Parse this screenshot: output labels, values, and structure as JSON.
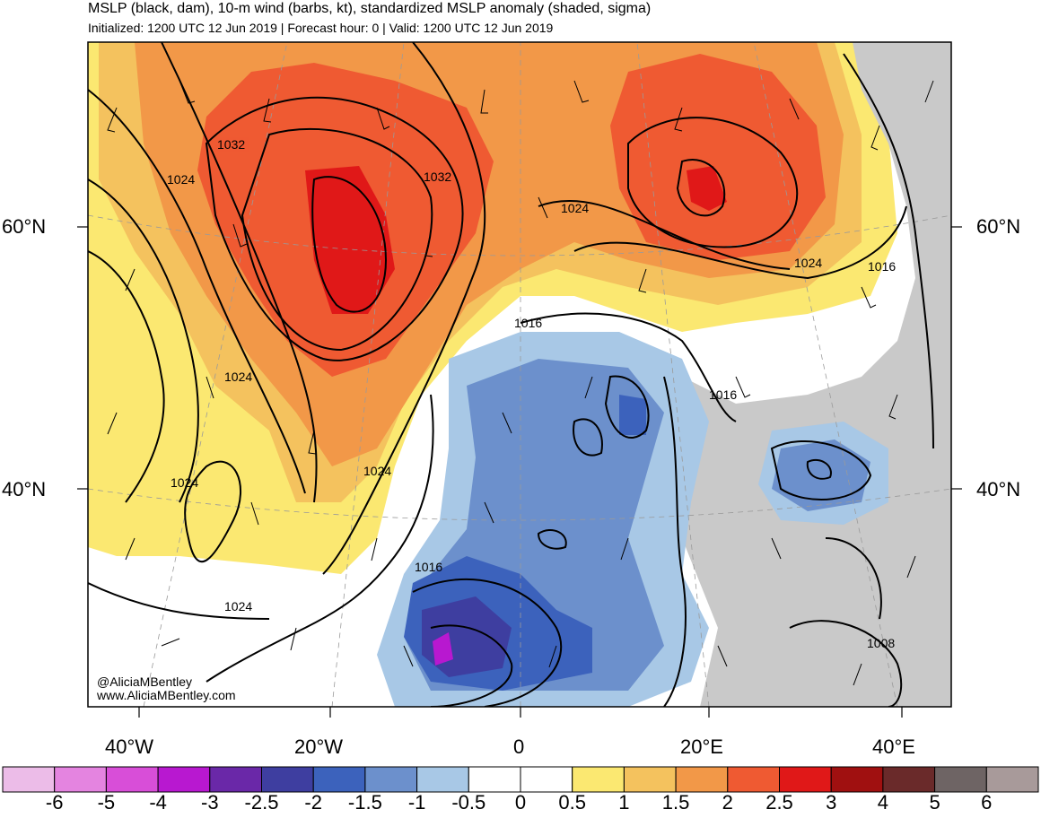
{
  "title": "MSLP (black, dam), 10-m wind (barbs, kt), standardized MSLP anomaly (shaded, sigma)",
  "subtitle": "Initialized: 1200 UTC 12 Jun 2019 | Forecast hour: 0 | Valid: 1200 UTC 12 Jun 2019",
  "lat_labels": {
    "left_60": "60°N",
    "right_60": "60°N",
    "left_40": "40°N",
    "right_40": "40°N"
  },
  "lon_labels": [
    "40°W",
    "20°W",
    "0",
    "20°E",
    "40°E"
  ],
  "isobar_labels": [
    "1032",
    "1024",
    "1032",
    "1024",
    "1024",
    "1016",
    "1024",
    "1016",
    "1024",
    "1024",
    "1016",
    "1024",
    "1016",
    "1008"
  ],
  "credits": {
    "handle": "@AliciaMBentley",
    "website": "www.AliciaMBentley.com"
  },
  "colorbar": {
    "labels": [
      "-6",
      "-5",
      "-4",
      "-3",
      "-2.5",
      "-2",
      "-1.5",
      "-1",
      "-0.5",
      "0",
      "0.5",
      "1",
      "1.5",
      "2",
      "2.5",
      "3",
      "4",
      "5",
      "6"
    ],
    "colors": [
      "#ecbce8",
      "#e484e0",
      "#d84ed8",
      "#b818d0",
      "#6a28a8",
      "#3e3ea0",
      "#3c62bc",
      "#6c90cc",
      "#a8c8e6",
      "#ffffff",
      "#ffffff",
      "#fbe871",
      "#f4c25e",
      "#f29848",
      "#ef5a32",
      "#e01818",
      "#a01010",
      "#6a2a2a",
      "#6e6464",
      "#a89a9a"
    ]
  },
  "colors": {
    "anomaly_high": "#ef5a32",
    "anomaly_low": "#3c62bc",
    "land_masked": "#c9c9c9",
    "isobar": "#000000"
  }
}
